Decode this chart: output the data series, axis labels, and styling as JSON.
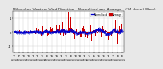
{
  "title": "Milwaukee Weather Wind Direction    Normalized and Average    (24 Hours) (New)",
  "title_fontsize": 3.2,
  "bg_color": "#e8e8e8",
  "plot_bg_color": "#ffffff",
  "grid_color": "#cccccc",
  "bar_color": "#cc0000",
  "line_color": "#0000cc",
  "ylim": [
    -1.5,
    1.5
  ],
  "legend_labels": [
    "Normalized",
    "Average"
  ],
  "legend_colors": [
    "#0000cc",
    "#cc0000"
  ],
  "n_points": 400,
  "seed": 42
}
